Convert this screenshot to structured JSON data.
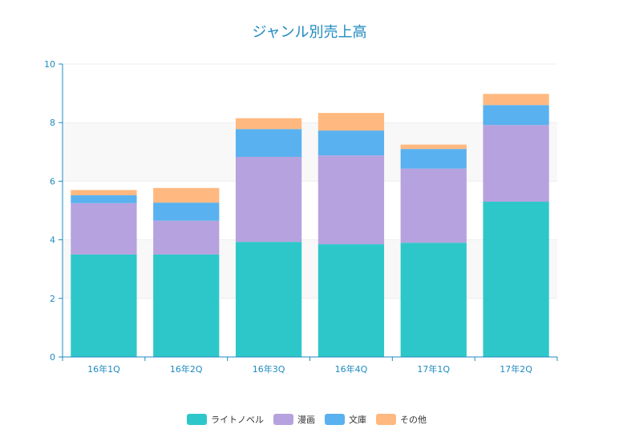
{
  "chart_data": {
    "type": "bar",
    "stacked": true,
    "title": "ジャンル別売上高",
    "xlabel": "",
    "ylabel": "",
    "categories": [
      "16年1Q",
      "16年2Q",
      "16年3Q",
      "16年4Q",
      "17年1Q",
      "17年2Q"
    ],
    "series": [
      {
        "name": "ライトノベル",
        "color": "#2ec7c9",
        "values": [
          3.5,
          3.5,
          3.93,
          3.85,
          3.9,
          5.3
        ]
      },
      {
        "name": "漫画",
        "color": "#b6a2de",
        "values": [
          1.75,
          1.15,
          2.9,
          3.03,
          2.53,
          2.62
        ]
      },
      {
        "name": "文庫",
        "color": "#5ab1ef",
        "values": [
          0.27,
          0.62,
          0.95,
          0.85,
          0.67,
          0.68
        ]
      },
      {
        "name": "その他",
        "color": "#ffb980",
        "values": [
          0.18,
          0.5,
          0.37,
          0.6,
          0.15,
          0.38
        ]
      }
    ],
    "ylim": [
      0,
      10
    ],
    "yticks": [
      "0",
      "2",
      "4",
      "6",
      "8",
      "10"
    ],
    "grid": true,
    "legend_position": "bottom"
  }
}
